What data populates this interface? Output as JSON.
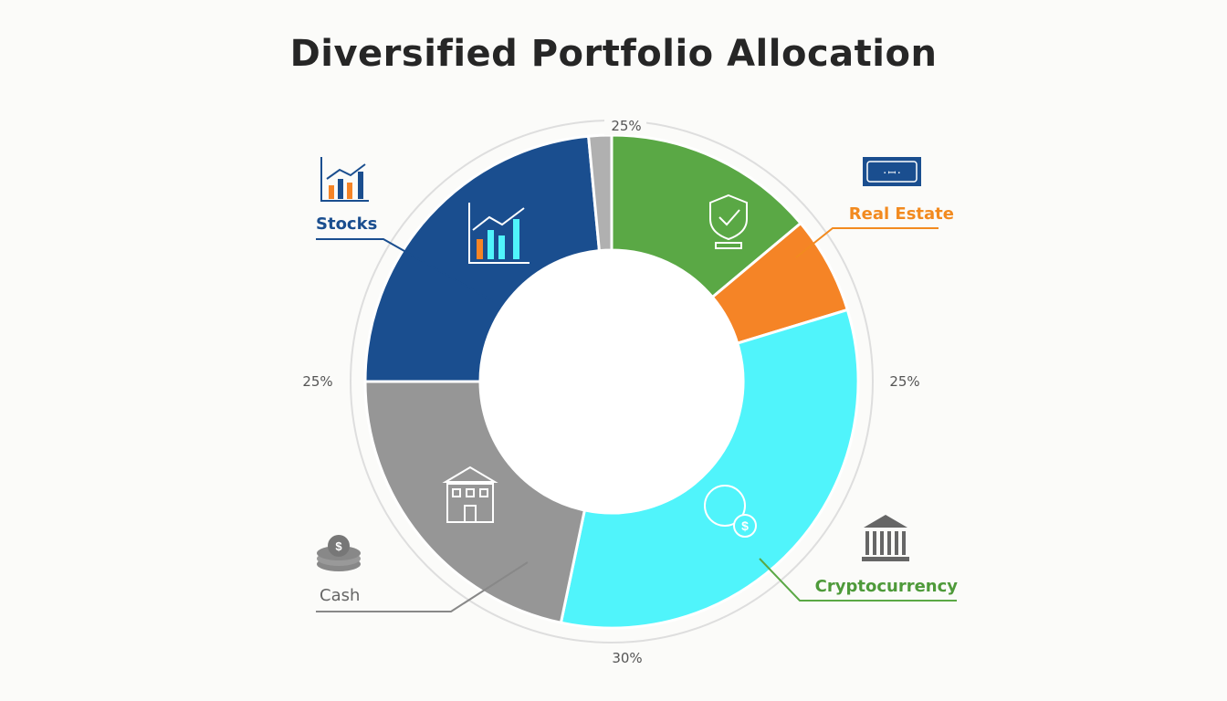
{
  "chart_data": {
    "type": "pie",
    "title": "Diversified Portfolio Allocation",
    "donut": true,
    "slices": [
      {
        "name": "Green (shield)",
        "value": 13.9,
        "color": "#5aa845"
      },
      {
        "name": "Real Estate",
        "value": 6.4,
        "color": "#f58426"
      },
      {
        "name": "Cryptocurrency",
        "value": 33.0,
        "color": "#50f4fb"
      },
      {
        "name": "Cash",
        "value": 21.7,
        "color": "#969696"
      },
      {
        "name": "Stocks",
        "value": 23.5,
        "color": "#1a4e8f"
      },
      {
        "name": "Other",
        "value": 1.5,
        "color": "#b0b0b0"
      }
    ],
    "ring_labels": {
      "top": "25%",
      "left": "25%",
      "right": "25%",
      "bottom": "30%"
    },
    "legend": [
      {
        "label": "Stocks",
        "color": "#1a4e8f",
        "icon": "bar-chart-icon"
      },
      {
        "label": "Real Estate",
        "color": "#f28a1f",
        "icon": "property-card-icon"
      },
      {
        "label": "Cryptocurrency",
        "color": "#5aa845",
        "icon": "bank-icon"
      },
      {
        "label": "Cash",
        "color": "#666666",
        "icon": "coins-icon"
      }
    ]
  }
}
